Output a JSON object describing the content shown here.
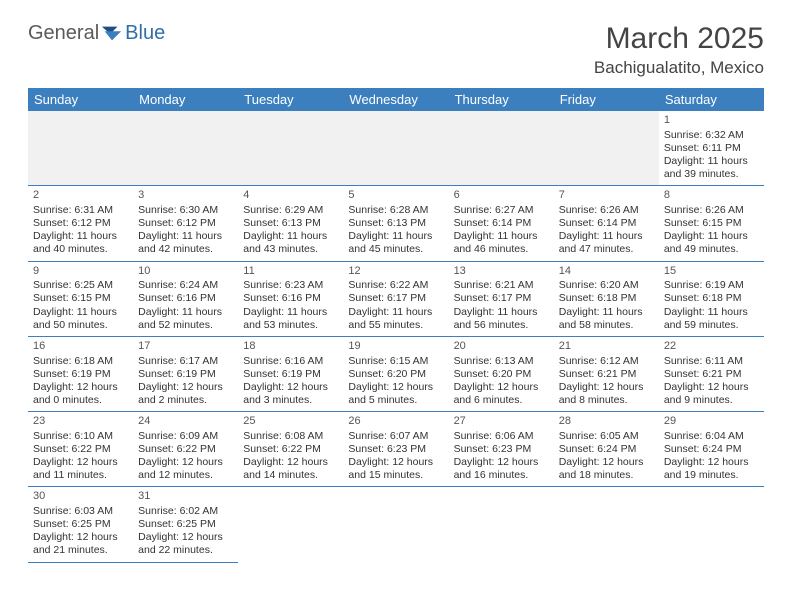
{
  "logo": {
    "text_a": "General",
    "text_b": "Blue"
  },
  "title": {
    "month": "March 2025",
    "location": "Bachigualatito, Mexico"
  },
  "colors": {
    "header_bg": "#3b7fbf",
    "header_fg": "#ffffff",
    "grid_line": "#3b7fbf",
    "empty_bg": "#f1f1f1",
    "text": "#333333"
  },
  "weekdays": [
    "Sunday",
    "Monday",
    "Tuesday",
    "Wednesday",
    "Thursday",
    "Friday",
    "Saturday"
  ],
  "rows": [
    [
      {
        "empty": true
      },
      {
        "empty": true
      },
      {
        "empty": true
      },
      {
        "empty": true
      },
      {
        "empty": true
      },
      {
        "empty": true
      },
      {
        "num": "1",
        "sunrise": "Sunrise: 6:32 AM",
        "sunset": "Sunset: 6:11 PM",
        "daylight": "Daylight: 11 hours and 39 minutes."
      }
    ],
    [
      {
        "num": "2",
        "sunrise": "Sunrise: 6:31 AM",
        "sunset": "Sunset: 6:12 PM",
        "daylight": "Daylight: 11 hours and 40 minutes."
      },
      {
        "num": "3",
        "sunrise": "Sunrise: 6:30 AM",
        "sunset": "Sunset: 6:12 PM",
        "daylight": "Daylight: 11 hours and 42 minutes."
      },
      {
        "num": "4",
        "sunrise": "Sunrise: 6:29 AM",
        "sunset": "Sunset: 6:13 PM",
        "daylight": "Daylight: 11 hours and 43 minutes."
      },
      {
        "num": "5",
        "sunrise": "Sunrise: 6:28 AM",
        "sunset": "Sunset: 6:13 PM",
        "daylight": "Daylight: 11 hours and 45 minutes."
      },
      {
        "num": "6",
        "sunrise": "Sunrise: 6:27 AM",
        "sunset": "Sunset: 6:14 PM",
        "daylight": "Daylight: 11 hours and 46 minutes."
      },
      {
        "num": "7",
        "sunrise": "Sunrise: 6:26 AM",
        "sunset": "Sunset: 6:14 PM",
        "daylight": "Daylight: 11 hours and 47 minutes."
      },
      {
        "num": "8",
        "sunrise": "Sunrise: 6:26 AM",
        "sunset": "Sunset: 6:15 PM",
        "daylight": "Daylight: 11 hours and 49 minutes."
      }
    ],
    [
      {
        "num": "9",
        "sunrise": "Sunrise: 6:25 AM",
        "sunset": "Sunset: 6:15 PM",
        "daylight": "Daylight: 11 hours and 50 minutes."
      },
      {
        "num": "10",
        "sunrise": "Sunrise: 6:24 AM",
        "sunset": "Sunset: 6:16 PM",
        "daylight": "Daylight: 11 hours and 52 minutes."
      },
      {
        "num": "11",
        "sunrise": "Sunrise: 6:23 AM",
        "sunset": "Sunset: 6:16 PM",
        "daylight": "Daylight: 11 hours and 53 minutes."
      },
      {
        "num": "12",
        "sunrise": "Sunrise: 6:22 AM",
        "sunset": "Sunset: 6:17 PM",
        "daylight": "Daylight: 11 hours and 55 minutes."
      },
      {
        "num": "13",
        "sunrise": "Sunrise: 6:21 AM",
        "sunset": "Sunset: 6:17 PM",
        "daylight": "Daylight: 11 hours and 56 minutes."
      },
      {
        "num": "14",
        "sunrise": "Sunrise: 6:20 AM",
        "sunset": "Sunset: 6:18 PM",
        "daylight": "Daylight: 11 hours and 58 minutes."
      },
      {
        "num": "15",
        "sunrise": "Sunrise: 6:19 AM",
        "sunset": "Sunset: 6:18 PM",
        "daylight": "Daylight: 11 hours and 59 minutes."
      }
    ],
    [
      {
        "num": "16",
        "sunrise": "Sunrise: 6:18 AM",
        "sunset": "Sunset: 6:19 PM",
        "daylight": "Daylight: 12 hours and 0 minutes."
      },
      {
        "num": "17",
        "sunrise": "Sunrise: 6:17 AM",
        "sunset": "Sunset: 6:19 PM",
        "daylight": "Daylight: 12 hours and 2 minutes."
      },
      {
        "num": "18",
        "sunrise": "Sunrise: 6:16 AM",
        "sunset": "Sunset: 6:19 PM",
        "daylight": "Daylight: 12 hours and 3 minutes."
      },
      {
        "num": "19",
        "sunrise": "Sunrise: 6:15 AM",
        "sunset": "Sunset: 6:20 PM",
        "daylight": "Daylight: 12 hours and 5 minutes."
      },
      {
        "num": "20",
        "sunrise": "Sunrise: 6:13 AM",
        "sunset": "Sunset: 6:20 PM",
        "daylight": "Daylight: 12 hours and 6 minutes."
      },
      {
        "num": "21",
        "sunrise": "Sunrise: 6:12 AM",
        "sunset": "Sunset: 6:21 PM",
        "daylight": "Daylight: 12 hours and 8 minutes."
      },
      {
        "num": "22",
        "sunrise": "Sunrise: 6:11 AM",
        "sunset": "Sunset: 6:21 PM",
        "daylight": "Daylight: 12 hours and 9 minutes."
      }
    ],
    [
      {
        "num": "23",
        "sunrise": "Sunrise: 6:10 AM",
        "sunset": "Sunset: 6:22 PM",
        "daylight": "Daylight: 12 hours and 11 minutes."
      },
      {
        "num": "24",
        "sunrise": "Sunrise: 6:09 AM",
        "sunset": "Sunset: 6:22 PM",
        "daylight": "Daylight: 12 hours and 12 minutes."
      },
      {
        "num": "25",
        "sunrise": "Sunrise: 6:08 AM",
        "sunset": "Sunset: 6:22 PM",
        "daylight": "Daylight: 12 hours and 14 minutes."
      },
      {
        "num": "26",
        "sunrise": "Sunrise: 6:07 AM",
        "sunset": "Sunset: 6:23 PM",
        "daylight": "Daylight: 12 hours and 15 minutes."
      },
      {
        "num": "27",
        "sunrise": "Sunrise: 6:06 AM",
        "sunset": "Sunset: 6:23 PM",
        "daylight": "Daylight: 12 hours and 16 minutes."
      },
      {
        "num": "28",
        "sunrise": "Sunrise: 6:05 AM",
        "sunset": "Sunset: 6:24 PM",
        "daylight": "Daylight: 12 hours and 18 minutes."
      },
      {
        "num": "29",
        "sunrise": "Sunrise: 6:04 AM",
        "sunset": "Sunset: 6:24 PM",
        "daylight": "Daylight: 12 hours and 19 minutes."
      }
    ],
    [
      {
        "num": "30",
        "sunrise": "Sunrise: 6:03 AM",
        "sunset": "Sunset: 6:25 PM",
        "daylight": "Daylight: 12 hours and 21 minutes."
      },
      {
        "num": "31",
        "sunrise": "Sunrise: 6:02 AM",
        "sunset": "Sunset: 6:25 PM",
        "daylight": "Daylight: 12 hours and 22 minutes."
      },
      {
        "blank": true
      },
      {
        "blank": true
      },
      {
        "blank": true
      },
      {
        "blank": true
      },
      {
        "blank": true
      }
    ]
  ]
}
